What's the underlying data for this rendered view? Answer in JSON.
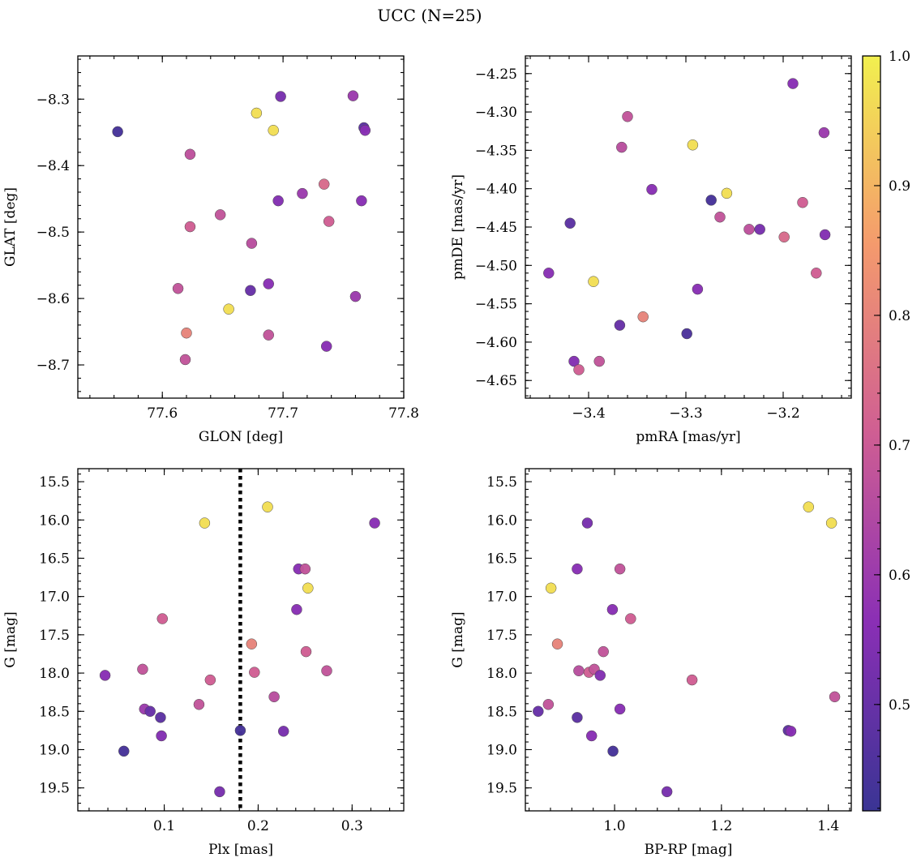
{
  "title": "UCC (N=25)",
  "chart_data": [
    {
      "type": "scatter",
      "name": "glon-glat",
      "xlabel": "GLON [deg]",
      "ylabel": "GLAT [deg]",
      "xlim": [
        77.53,
        77.8
      ],
      "ylim": [
        -8.75,
        -8.235
      ],
      "y_inverted": false,
      "xticks": [
        77.6,
        77.7,
        77.8
      ],
      "xtick_labels": [
        "77.6",
        "77.7",
        "77.8"
      ],
      "xminor": 0.02,
      "yticks": [
        -8.3,
        -8.4,
        -8.5,
        -8.6,
        -8.7
      ],
      "ytick_labels": [
        "−8.3",
        "−8.4",
        "−8.5",
        "−8.6",
        "−8.7"
      ],
      "yminor": 0.02,
      "points": [
        {
          "x": 77.563,
          "y": -8.349,
          "c": 0.44
        },
        {
          "x": 77.678,
          "y": -8.321,
          "c": 0.97
        },
        {
          "x": 77.692,
          "y": -8.347,
          "c": 0.97
        },
        {
          "x": 77.698,
          "y": -8.296,
          "c": 0.53
        },
        {
          "x": 77.758,
          "y": -8.295,
          "c": 0.6
        },
        {
          "x": 77.767,
          "y": -8.343,
          "c": 0.48
        },
        {
          "x": 77.768,
          "y": -8.347,
          "c": 0.56
        },
        {
          "x": 77.623,
          "y": -8.383,
          "c": 0.67
        },
        {
          "x": 77.696,
          "y": -8.453,
          "c": 0.55
        },
        {
          "x": 77.716,
          "y": -8.442,
          "c": 0.6
        },
        {
          "x": 77.734,
          "y": -8.428,
          "c": 0.74
        },
        {
          "x": 77.765,
          "y": -8.453,
          "c": 0.56
        },
        {
          "x": 77.648,
          "y": -8.474,
          "c": 0.68
        },
        {
          "x": 77.623,
          "y": -8.492,
          "c": 0.71
        },
        {
          "x": 77.738,
          "y": -8.484,
          "c": 0.71
        },
        {
          "x": 77.674,
          "y": -8.517,
          "c": 0.66
        },
        {
          "x": 77.613,
          "y": -8.585,
          "c": 0.68
        },
        {
          "x": 77.673,
          "y": -8.588,
          "c": 0.5
        },
        {
          "x": 77.688,
          "y": -8.578,
          "c": 0.56
        },
        {
          "x": 77.76,
          "y": -8.597,
          "c": 0.6
        },
        {
          "x": 77.655,
          "y": -8.616,
          "c": 0.97
        },
        {
          "x": 77.62,
          "y": -8.652,
          "c": 0.8
        },
        {
          "x": 77.688,
          "y": -8.655,
          "c": 0.68
        },
        {
          "x": 77.736,
          "y": -8.672,
          "c": 0.56
        },
        {
          "x": 77.619,
          "y": -8.692,
          "c": 0.68
        }
      ]
    },
    {
      "type": "scatter",
      "name": "pmra-pmde",
      "xlabel": "pmRA [mas/yr]",
      "ylabel": "pmDE [mas/yr]",
      "xlim": [
        -3.465,
        -3.13
      ],
      "ylim": [
        -4.673,
        -4.227
      ],
      "y_inverted": false,
      "xticks": [
        -3.4,
        -3.3,
        -3.2
      ],
      "xtick_labels": [
        "−3.4",
        "−3.3",
        "−3.2"
      ],
      "xminor": 0.02,
      "yticks": [
        -4.25,
        -4.3,
        -4.35,
        -4.4,
        -4.45,
        -4.5,
        -4.55,
        -4.6,
        -4.65
      ],
      "ytick_labels": [
        "−4.25",
        "−4.30",
        "−4.35",
        "−4.40",
        "−4.45",
        "−4.50",
        "−4.55",
        "−4.60",
        "−4.65"
      ],
      "yminor": 0.01,
      "points": [
        {
          "x": -3.19,
          "y": -4.263,
          "c": 0.56
        },
        {
          "x": -3.36,
          "y": -4.306,
          "c": 0.68
        },
        {
          "x": -3.158,
          "y": -4.327,
          "c": 0.6
        },
        {
          "x": -3.293,
          "y": -4.343,
          "c": 0.97
        },
        {
          "x": -3.366,
          "y": -4.346,
          "c": 0.66
        },
        {
          "x": -3.335,
          "y": -4.401,
          "c": 0.56
        },
        {
          "x": -3.274,
          "y": -4.415,
          "c": 0.44
        },
        {
          "x": -3.258,
          "y": -4.406,
          "c": 0.97
        },
        {
          "x": -3.18,
          "y": -4.418,
          "c": 0.71
        },
        {
          "x": -3.265,
          "y": -4.437,
          "c": 0.68
        },
        {
          "x": -3.419,
          "y": -4.445,
          "c": 0.48
        },
        {
          "x": -3.235,
          "y": -4.453,
          "c": 0.67
        },
        {
          "x": -3.224,
          "y": -4.453,
          "c": 0.53
        },
        {
          "x": -3.199,
          "y": -4.463,
          "c": 0.74
        },
        {
          "x": -3.157,
          "y": -4.46,
          "c": 0.55
        },
        {
          "x": -3.166,
          "y": -4.51,
          "c": 0.71
        },
        {
          "x": -3.441,
          "y": -4.51,
          "c": 0.56
        },
        {
          "x": -3.395,
          "y": -4.521,
          "c": 0.97
        },
        {
          "x": -3.288,
          "y": -4.531,
          "c": 0.56
        },
        {
          "x": -3.344,
          "y": -4.567,
          "c": 0.8
        },
        {
          "x": -3.368,
          "y": -4.578,
          "c": 0.5
        },
        {
          "x": -3.299,
          "y": -4.589,
          "c": 0.45
        },
        {
          "x": -3.415,
          "y": -4.625,
          "c": 0.55
        },
        {
          "x": -3.389,
          "y": -4.625,
          "c": 0.68
        },
        {
          "x": -3.41,
          "y": -4.636,
          "c": 0.71
        }
      ]
    },
    {
      "type": "scatter",
      "name": "plx-g",
      "xlabel": "Plx [mas]",
      "ylabel": "G [mag]",
      "xlim": [
        0.008,
        0.355
      ],
      "ylim": [
        15.33,
        19.8
      ],
      "y_inverted": true,
      "xticks": [
        0.1,
        0.2,
        0.3
      ],
      "xtick_labels": [
        "0.1",
        "0.2",
        "0.3"
      ],
      "xminor": 0.02,
      "yticks": [
        15.5,
        16.0,
        16.5,
        17.0,
        17.5,
        18.0,
        18.5,
        19.0,
        19.5
      ],
      "ytick_labels": [
        "15.5",
        "16.0",
        "16.5",
        "17.0",
        "17.5",
        "18.0",
        "18.5",
        "19.0",
        "19.5"
      ],
      "yminor": 0.1,
      "vline": 0.181,
      "points": [
        {
          "x": 0.21,
          "y": 15.83,
          "c": 0.97
        },
        {
          "x": 0.143,
          "y": 16.04,
          "c": 0.97
        },
        {
          "x": 0.324,
          "y": 16.04,
          "c": 0.56
        },
        {
          "x": 0.243,
          "y": 16.64,
          "c": 0.56
        },
        {
          "x": 0.25,
          "y": 16.64,
          "c": 0.68
        },
        {
          "x": 0.253,
          "y": 16.89,
          "c": 0.97
        },
        {
          "x": 0.241,
          "y": 17.17,
          "c": 0.56
        },
        {
          "x": 0.098,
          "y": 17.29,
          "c": 0.71
        },
        {
          "x": 0.193,
          "y": 17.62,
          "c": 0.8
        },
        {
          "x": 0.251,
          "y": 17.72,
          "c": 0.71
        },
        {
          "x": 0.077,
          "y": 17.95,
          "c": 0.68
        },
        {
          "x": 0.037,
          "y": 18.03,
          "c": 0.56
        },
        {
          "x": 0.196,
          "y": 17.99,
          "c": 0.71
        },
        {
          "x": 0.273,
          "y": 17.97,
          "c": 0.68
        },
        {
          "x": 0.149,
          "y": 18.09,
          "c": 0.71
        },
        {
          "x": 0.217,
          "y": 18.31,
          "c": 0.66
        },
        {
          "x": 0.137,
          "y": 18.41,
          "c": 0.68
        },
        {
          "x": 0.079,
          "y": 18.47,
          "c": 0.6
        },
        {
          "x": 0.085,
          "y": 18.5,
          "c": 0.5
        },
        {
          "x": 0.096,
          "y": 18.58,
          "c": 0.48
        },
        {
          "x": 0.097,
          "y": 18.82,
          "c": 0.55
        },
        {
          "x": 0.227,
          "y": 18.76,
          "c": 0.53
        },
        {
          "x": 0.181,
          "y": 18.75,
          "c": 0.44
        },
        {
          "x": 0.057,
          "y": 19.02,
          "c": 0.44
        },
        {
          "x": 0.159,
          "y": 19.55,
          "c": 0.53
        }
      ]
    },
    {
      "type": "scatter",
      "name": "bprp-g",
      "xlabel": "BP-RP [mag]",
      "ylabel": "G [mag]",
      "xlim": [
        0.833,
        1.443
      ],
      "ylim": [
        15.33,
        19.8
      ],
      "y_inverted": true,
      "xticks": [
        1.0,
        1.2,
        1.4
      ],
      "xtick_labels": [
        "1.0",
        "1.2",
        "1.4"
      ],
      "xminor": 0.04,
      "yticks": [
        15.5,
        16.0,
        16.5,
        17.0,
        17.5,
        18.0,
        18.5,
        19.0,
        19.5
      ],
      "ytick_labels": [
        "15.5",
        "16.0",
        "16.5",
        "17.0",
        "17.5",
        "18.0",
        "18.5",
        "19.0",
        "19.5"
      ],
      "yminor": 0.1,
      "points": [
        {
          "x": 1.363,
          "y": 15.83,
          "c": 0.97
        },
        {
          "x": 1.406,
          "y": 16.04,
          "c": 0.97
        },
        {
          "x": 0.949,
          "y": 16.04,
          "c": 0.53
        },
        {
          "x": 0.93,
          "y": 16.64,
          "c": 0.56
        },
        {
          "x": 1.01,
          "y": 16.64,
          "c": 0.68
        },
        {
          "x": 0.881,
          "y": 16.89,
          "c": 0.97
        },
        {
          "x": 0.996,
          "y": 17.17,
          "c": 0.56
        },
        {
          "x": 1.03,
          "y": 17.29,
          "c": 0.71
        },
        {
          "x": 0.893,
          "y": 17.62,
          "c": 0.8
        },
        {
          "x": 0.979,
          "y": 17.72,
          "c": 0.68
        },
        {
          "x": 0.933,
          "y": 17.97,
          "c": 0.66
        },
        {
          "x": 0.952,
          "y": 17.99,
          "c": 0.71
        },
        {
          "x": 0.962,
          "y": 17.95,
          "c": 0.68
        },
        {
          "x": 0.973,
          "y": 18.03,
          "c": 0.55
        },
        {
          "x": 1.145,
          "y": 18.09,
          "c": 0.71
        },
        {
          "x": 1.412,
          "y": 18.31,
          "c": 0.68
        },
        {
          "x": 0.876,
          "y": 18.41,
          "c": 0.68
        },
        {
          "x": 0.857,
          "y": 18.5,
          "c": 0.5
        },
        {
          "x": 1.01,
          "y": 18.47,
          "c": 0.56
        },
        {
          "x": 0.93,
          "y": 18.58,
          "c": 0.48
        },
        {
          "x": 1.325,
          "y": 18.75,
          "c": 0.48
        },
        {
          "x": 1.33,
          "y": 18.76,
          "c": 0.56
        },
        {
          "x": 0.957,
          "y": 18.82,
          "c": 0.56
        },
        {
          "x": 0.997,
          "y": 19.02,
          "c": 0.44
        },
        {
          "x": 1.098,
          "y": 19.55,
          "c": 0.53
        }
      ]
    }
  ],
  "colorbar": {
    "min": 0.418,
    "max": 1.0,
    "ticks": [
      0.5,
      0.6,
      0.7,
      0.8,
      0.9,
      1.0
    ],
    "tick_labels": [
      "0.5",
      "0.6",
      "0.7",
      "0.8",
      "0.9",
      "1.0"
    ],
    "minor": 0.02,
    "colormap": "plasma",
    "colormap_stops": [
      "#3a3494",
      "#8a2fb5",
      "#cf5e93",
      "#f49a6d",
      "#f2f04f"
    ]
  },
  "styles": {
    "marker_edge": "#4a4a4a",
    "vline_color": "#000000"
  }
}
